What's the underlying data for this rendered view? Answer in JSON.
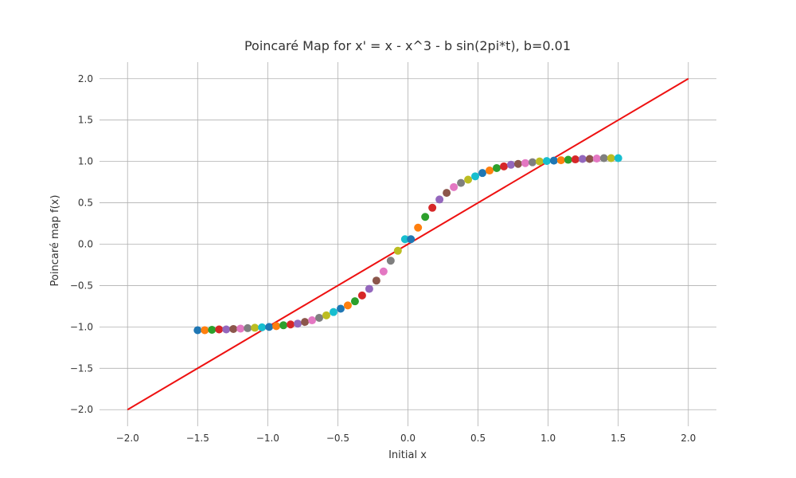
{
  "chart_data": {
    "type": "scatter",
    "title": "Poincaré Map for x' = x - x^3 - b sin(2pi*t), b=0.01",
    "xlabel": "Initial x",
    "ylabel": "Poincaré map f(x)",
    "xlim": [
      -2.2,
      2.2
    ],
    "ylim": [
      -2.2,
      2.2
    ],
    "grid": true,
    "x_ticks": [
      -2.0,
      -1.5,
      -1.0,
      -0.5,
      0.0,
      0.5,
      1.0,
      1.5,
      2.0
    ],
    "y_ticks": [
      -2.0,
      -1.5,
      -1.0,
      -0.5,
      0.0,
      0.5,
      1.0,
      1.5,
      2.0
    ],
    "x_tick_labels": [
      "−2.0",
      "−1.5",
      "−1.0",
      "−0.5",
      "0.0",
      "0.5",
      "1.0",
      "1.5",
      "2.0"
    ],
    "y_tick_labels": [
      "−2.0",
      "−1.5",
      "−1.0",
      "−0.5",
      "0.0",
      "0.5",
      "1.0",
      "1.5",
      "2.0"
    ],
    "point_colors": [
      "#1f77b4",
      "#ff7f0e",
      "#2ca02c",
      "#d62728",
      "#9467bd",
      "#8c564b",
      "#e377c2",
      "#7f7f7f",
      "#bcbd22",
      "#17becf"
    ],
    "points": {
      "x": [
        -1.5,
        -1.449,
        -1.398,
        -1.347,
        -1.296,
        -1.245,
        -1.194,
        -1.143,
        -1.092,
        -1.041,
        -0.99,
        -0.939,
        -0.888,
        -0.837,
        -0.786,
        -0.735,
        -0.684,
        -0.633,
        -0.582,
        -0.531,
        -0.48,
        -0.429,
        -0.378,
        -0.327,
        -0.276,
        -0.225,
        -0.174,
        -0.123,
        -0.072,
        -0.021,
        0.021,
        0.072,
        0.123,
        0.174,
        0.225,
        0.276,
        0.327,
        0.378,
        0.429,
        0.48,
        0.531,
        0.582,
        0.633,
        0.684,
        0.735,
        0.786,
        0.837,
        0.888,
        0.939,
        0.99,
        1.041,
        1.092,
        1.143,
        1.194,
        1.245,
        1.296,
        1.347,
        1.398,
        1.449,
        1.5
      ],
      "y": [
        -1.04,
        -1.04,
        -1.035,
        -1.03,
        -1.03,
        -1.025,
        -1.02,
        -1.015,
        -1.01,
        -1.005,
        -1.0,
        -0.99,
        -0.98,
        -0.97,
        -0.96,
        -0.94,
        -0.92,
        -0.89,
        -0.86,
        -0.82,
        -0.78,
        -0.74,
        -0.69,
        -0.62,
        -0.54,
        -0.44,
        -0.33,
        -0.2,
        -0.08,
        0.06,
        0.06,
        0.2,
        0.33,
        0.44,
        0.54,
        0.62,
        0.69,
        0.74,
        0.78,
        0.82,
        0.86,
        0.89,
        0.92,
        0.94,
        0.96,
        0.97,
        0.98,
        0.99,
        1.0,
        1.005,
        1.01,
        1.015,
        1.02,
        1.025,
        1.03,
        1.03,
        1.035,
        1.04,
        1.04,
        1.04
      ]
    },
    "line": {
      "x": [
        -2.0,
        2.0
      ],
      "y": [
        -2.0,
        2.0
      ],
      "color": "#ee1111"
    }
  }
}
